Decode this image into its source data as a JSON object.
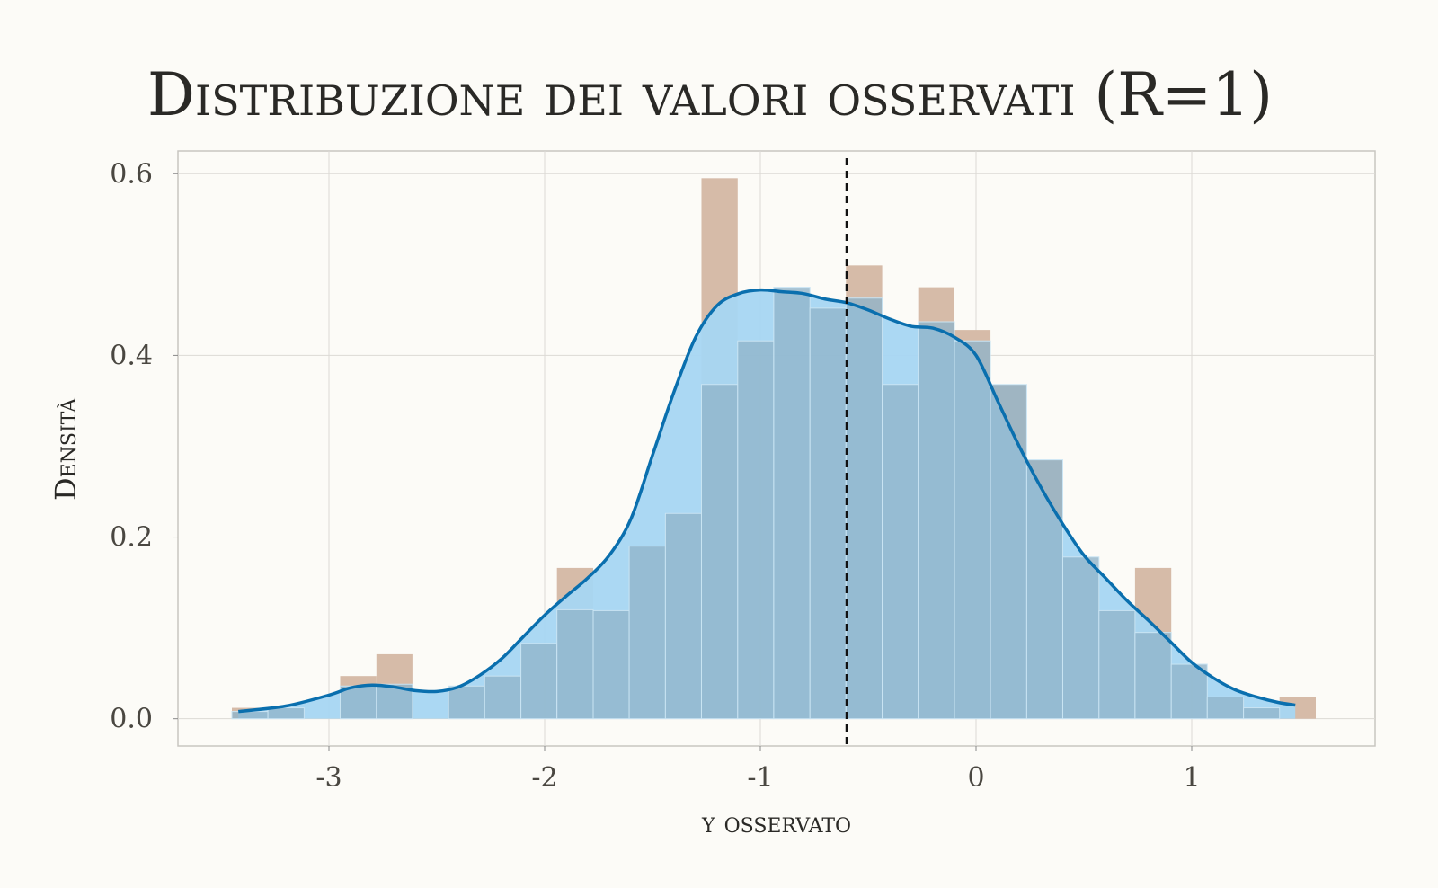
{
  "chart_data": {
    "type": "histogram",
    "title": "Distribuzione dei valori osservati (R=1)",
    "xlabel": "y osservato",
    "ylabel": "Densità",
    "xlim": [
      -3.7,
      1.85
    ],
    "ylim": [
      -0.03,
      0.625
    ],
    "xticks": [
      -3,
      -2,
      -1,
      0,
      1
    ],
    "xtick_labels": [
      "-3",
      "-2",
      "-1",
      "0",
      "1"
    ],
    "yticks": [
      0,
      0.2,
      0.4,
      0.6
    ],
    "ytick_labels": [
      "0.0",
      "0.2",
      "0.4",
      "0.6"
    ],
    "grid": true,
    "bin_edges": [
      -3.45,
      -3.283,
      -3.115,
      -2.948,
      -2.78,
      -2.613,
      -2.445,
      -2.278,
      -2.11,
      -1.943,
      -1.775,
      -1.608,
      -1.44,
      -1.273,
      -1.105,
      -0.938,
      -0.77,
      -0.603,
      -0.435,
      -0.268,
      -0.1,
      0.067,
      0.235,
      0.402,
      0.57,
      0.737,
      0.905,
      1.072,
      1.24,
      1.407,
      1.575
    ],
    "series": [
      {
        "role": "observed",
        "color": "#d6bba8",
        "values": [
          0.012,
          0.0,
          0.0,
          0.047,
          0.071,
          0.0,
          0.0,
          0.0,
          0.0,
          0.166,
          0.0,
          0.0,
          0.0,
          0.595,
          0.0,
          0.0,
          0.0,
          0.499,
          0.0,
          0.475,
          0.428,
          0.368,
          0.285,
          0.0,
          0.0,
          0.166,
          0.0,
          0.0,
          0.0,
          0.024
        ]
      },
      {
        "role": "replicated",
        "color": "#8fb4c9",
        "values": [
          0.008,
          0.012,
          0.0,
          0.036,
          0.038,
          0.0,
          0.036,
          0.047,
          0.083,
          0.12,
          0.119,
          0.19,
          0.226,
          0.368,
          0.416,
          0.475,
          0.452,
          0.463,
          0.368,
          0.437,
          0.416,
          0.368,
          0.285,
          0.178,
          0.119,
          0.095,
          0.06,
          0.024,
          0.012,
          0.0
        ]
      }
    ],
    "density_curve": {
      "color": "#0a6fae",
      "fill": "#a6d6f2",
      "x": [
        -3.42,
        -3.2,
        -3.0,
        -2.9,
        -2.8,
        -2.7,
        -2.6,
        -2.5,
        -2.4,
        -2.3,
        -2.2,
        -2.1,
        -2.0,
        -1.9,
        -1.8,
        -1.7,
        -1.6,
        -1.5,
        -1.4,
        -1.3,
        -1.2,
        -1.1,
        -1.0,
        -0.9,
        -0.8,
        -0.7,
        -0.6,
        -0.5,
        -0.4,
        -0.3,
        -0.2,
        -0.1,
        0.0,
        0.1,
        0.2,
        0.3,
        0.4,
        0.5,
        0.6,
        0.7,
        0.8,
        0.9,
        1.0,
        1.1,
        1.2,
        1.3,
        1.4,
        1.48
      ],
      "y": [
        0.008,
        0.014,
        0.026,
        0.034,
        0.037,
        0.035,
        0.031,
        0.03,
        0.035,
        0.048,
        0.066,
        0.09,
        0.114,
        0.135,
        0.155,
        0.18,
        0.22,
        0.29,
        0.36,
        0.42,
        0.455,
        0.468,
        0.472,
        0.47,
        0.468,
        0.462,
        0.458,
        0.45,
        0.44,
        0.432,
        0.43,
        0.42,
        0.4,
        0.35,
        0.3,
        0.255,
        0.215,
        0.18,
        0.155,
        0.13,
        0.108,
        0.085,
        0.062,
        0.045,
        0.032,
        0.024,
        0.018,
        0.015
      ]
    },
    "reference_line": {
      "x": -0.6,
      "style": "dashed",
      "color": "#111111"
    }
  }
}
